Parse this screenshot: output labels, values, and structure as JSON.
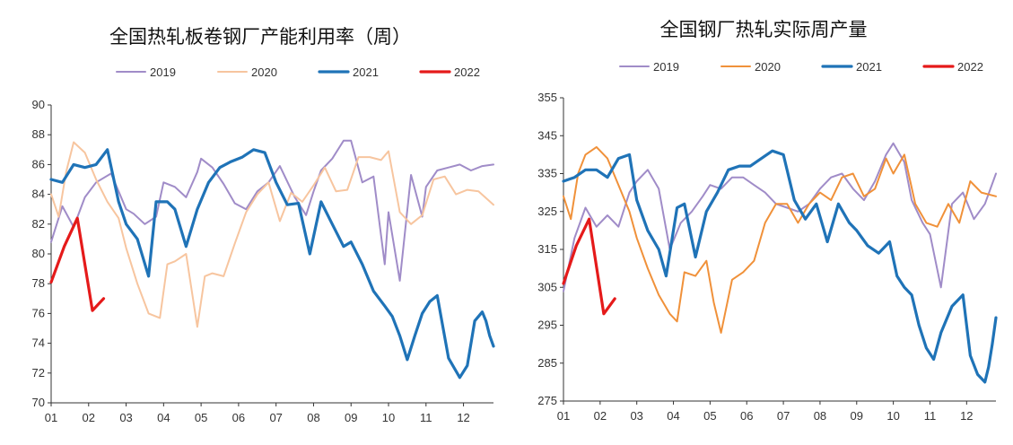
{
  "chart_data": [
    {
      "type": "line",
      "title": "全国热轧板卷钢厂产能利用率（周）",
      "xlabel": "",
      "ylabel": "",
      "ylim": [
        70,
        90
      ],
      "yticks": [
        "90",
        "88",
        "86",
        "84",
        "82",
        "80",
        "78",
        "76",
        "74",
        "72",
        "70"
      ],
      "xticks": [
        "01",
        "02",
        "03",
        "04",
        "05",
        "06",
        "07",
        "08",
        "09",
        "10",
        "11",
        "12"
      ],
      "xrange": [
        1,
        12.8
      ],
      "grid": false,
      "legend": "top",
      "series": [
        {
          "name": "2019",
          "color": "#A08CC8",
          "width": 2,
          "x": [
            1,
            1.3,
            1.6,
            1.9,
            2.2,
            2.6,
            3.0,
            3.2,
            3.5,
            3.8,
            4.0,
            4.3,
            4.6,
            4.9,
            5.0,
            5.3,
            5.6,
            5.9,
            6.2,
            6.5,
            6.8,
            7.1,
            7.5,
            7.8,
            8.0,
            8.2,
            8.5,
            8.8,
            9.0,
            9.3,
            9.6,
            9.9,
            10.0,
            10.3,
            10.6,
            10.9,
            11.0,
            11.3,
            11.6,
            11.9,
            12.2,
            12.5,
            12.8
          ],
          "values": [
            80.8,
            83.2,
            81.8,
            83.8,
            84.8,
            85.4,
            83.0,
            82.7,
            82.0,
            82.5,
            84.8,
            84.5,
            83.8,
            85.5,
            86.4,
            85.8,
            84.7,
            83.4,
            83.0,
            84.2,
            84.8,
            85.9,
            83.8,
            82.6,
            84.2,
            85.6,
            86.4,
            87.6,
            87.6,
            84.8,
            85.2,
            79.3,
            82.8,
            78.2,
            85.3,
            82.5,
            84.5,
            85.6,
            85.8,
            86.0,
            85.6,
            85.9,
            86.0
          ]
        },
        {
          "name": "2020",
          "color": "#F7C59F",
          "width": 2,
          "x": [
            1,
            1.2,
            1.4,
            1.6,
            1.9,
            2.2,
            2.5,
            2.8,
            3.0,
            3.3,
            3.6,
            3.9,
            4.1,
            4.3,
            4.6,
            4.9,
            5.1,
            5.3,
            5.6,
            5.9,
            6.2,
            6.5,
            6.8,
            7.1,
            7.4,
            7.7,
            8.0,
            8.3,
            8.6,
            8.9,
            9.2,
            9.5,
            9.8,
            10.0,
            10.3,
            10.6,
            10.9,
            11.2,
            11.5,
            11.8,
            12.1,
            12.4,
            12.8
          ],
          "values": [
            84.0,
            82.5,
            85.5,
            87.5,
            86.8,
            85.0,
            83.5,
            82.4,
            80.4,
            78.0,
            76.0,
            75.7,
            79.3,
            79.5,
            80.0,
            75.1,
            78.5,
            78.7,
            78.5,
            80.7,
            82.8,
            84.0,
            84.8,
            82.2,
            84.1,
            83.5,
            84.6,
            85.8,
            84.2,
            84.3,
            86.5,
            86.5,
            86.3,
            86.9,
            82.8,
            82.0,
            82.6,
            85.0,
            85.2,
            84.0,
            84.3,
            84.2,
            83.3
          ]
        },
        {
          "name": "2021",
          "color": "#1F73B7",
          "width": 3.2,
          "x": [
            1,
            1.3,
            1.6,
            1.9,
            2.2,
            2.5,
            2.8,
            3.0,
            3.3,
            3.6,
            3.8,
            4.1,
            4.3,
            4.6,
            4.9,
            5.2,
            5.5,
            5.8,
            6.1,
            6.4,
            6.7,
            7.0,
            7.3,
            7.6,
            7.9,
            8.2,
            8.5,
            8.8,
            9.0,
            9.3,
            9.6,
            9.9,
            10.1,
            10.3,
            10.5,
            10.7,
            10.9,
            11.1,
            11.3,
            11.6,
            11.9,
            12.1,
            12.3,
            12.5,
            12.6,
            12.7,
            12.8
          ],
          "values": [
            85.0,
            84.8,
            86.0,
            85.8,
            86.0,
            87.0,
            83.5,
            82.0,
            81.0,
            78.5,
            83.5,
            83.5,
            83.0,
            80.5,
            83.0,
            84.8,
            85.8,
            86.2,
            86.5,
            87.0,
            86.8,
            84.8,
            83.3,
            83.4,
            80.0,
            83.5,
            82.0,
            80.5,
            80.8,
            79.3,
            77.5,
            76.5,
            75.8,
            74.5,
            72.9,
            74.5,
            76.0,
            76.8,
            77.2,
            73.0,
            71.7,
            72.5,
            75.5,
            76.1,
            75.5,
            74.5,
            73.8
          ]
        },
        {
          "name": "2022",
          "color": "#E51A1A",
          "width": 3.2,
          "x": [
            1,
            1.35,
            1.7,
            2.1,
            2.4
          ],
          "values": [
            78.1,
            80.5,
            82.4,
            76.2,
            77.0
          ]
        }
      ]
    },
    {
      "type": "line",
      "title": "全国钢厂热轧实际周产量",
      "xlabel": "",
      "ylabel": "",
      "ylim": [
        275,
        355
      ],
      "yticks": [
        "355",
        "345",
        "335",
        "325",
        "315",
        "305",
        "295",
        "285",
        "275"
      ],
      "xticks": [
        "01",
        "02",
        "03",
        "04",
        "05",
        "06",
        "07",
        "08",
        "09",
        "10",
        "11",
        "12"
      ],
      "xrange": [
        1,
        12.8
      ],
      "grid": false,
      "legend": "top",
      "series": [
        {
          "name": "2019",
          "color": "#A08CC8",
          "width": 2,
          "x": [
            1,
            1.3,
            1.6,
            1.9,
            2.2,
            2.5,
            2.8,
            3.0,
            3.3,
            3.6,
            3.9,
            4.2,
            4.5,
            4.8,
            5.0,
            5.3,
            5.6,
            5.9,
            6.2,
            6.5,
            6.8,
            7.1,
            7.4,
            7.7,
            8.0,
            8.3,
            8.6,
            8.9,
            9.2,
            9.5,
            9.8,
            10.0,
            10.3,
            10.5,
            10.8,
            11.0,
            11.3,
            11.6,
            11.9,
            12.2,
            12.5,
            12.8
          ],
          "values": [
            304,
            318,
            326,
            321,
            324,
            321,
            330,
            333,
            336,
            331,
            315,
            322,
            325,
            329,
            332,
            331,
            334,
            334,
            332,
            330,
            327,
            326,
            325,
            327,
            331,
            334,
            335,
            331,
            328,
            333,
            340,
            343,
            338,
            328,
            322,
            319,
            305,
            327,
            330,
            323,
            327,
            335
          ]
        },
        {
          "name": "2020",
          "color": "#F0913A",
          "width": 2,
          "x": [
            1,
            1.2,
            1.4,
            1.6,
            1.9,
            2.2,
            2.5,
            2.8,
            3.0,
            3.3,
            3.6,
            3.9,
            4.1,
            4.3,
            4.6,
            4.9,
            5.1,
            5.3,
            5.6,
            5.9,
            6.2,
            6.5,
            6.8,
            7.1,
            7.4,
            7.7,
            8.0,
            8.3,
            8.6,
            8.9,
            9.2,
            9.5,
            9.8,
            10.0,
            10.3,
            10.6,
            10.9,
            11.2,
            11.5,
            11.8,
            12.1,
            12.4,
            12.8
          ],
          "values": [
            329,
            323,
            335,
            340,
            342,
            339,
            332,
            325,
            318,
            310,
            303,
            298,
            296,
            309,
            308,
            312,
            301,
            293,
            307,
            309,
            312,
            322,
            327,
            327,
            322,
            327,
            330,
            328,
            334,
            335,
            329,
            331,
            339,
            335,
            340,
            327,
            322,
            321,
            327,
            322,
            333,
            330,
            329
          ]
        },
        {
          "name": "2021",
          "color": "#1F73B7",
          "width": 3.2,
          "x": [
            1,
            1.3,
            1.6,
            1.9,
            2.2,
            2.5,
            2.8,
            3.0,
            3.3,
            3.6,
            3.8,
            4.1,
            4.3,
            4.6,
            4.9,
            5.2,
            5.5,
            5.8,
            6.1,
            6.4,
            6.7,
            7.0,
            7.3,
            7.6,
            7.9,
            8.2,
            8.5,
            8.8,
            9.0,
            9.3,
            9.6,
            9.9,
            10.1,
            10.3,
            10.5,
            10.7,
            10.9,
            11.1,
            11.3,
            11.6,
            11.9,
            12.1,
            12.3,
            12.5,
            12.6,
            12.7,
            12.8
          ],
          "values": [
            333,
            334,
            336,
            336,
            334,
            339,
            340,
            328,
            320,
            315,
            308,
            326,
            327,
            313,
            325,
            330,
            336,
            337,
            337,
            339,
            341,
            340,
            328,
            323,
            327,
            317,
            327,
            322,
            320,
            316,
            314,
            317,
            308,
            305,
            303,
            295,
            289,
            286,
            293,
            300,
            303,
            287,
            282,
            280,
            284,
            290,
            297
          ]
        },
        {
          "name": "2022",
          "color": "#E51A1A",
          "width": 3.2,
          "x": [
            1,
            1.35,
            1.7,
            2.1,
            2.4
          ],
          "values": [
            306,
            316,
            323,
            298,
            302
          ]
        }
      ]
    }
  ]
}
